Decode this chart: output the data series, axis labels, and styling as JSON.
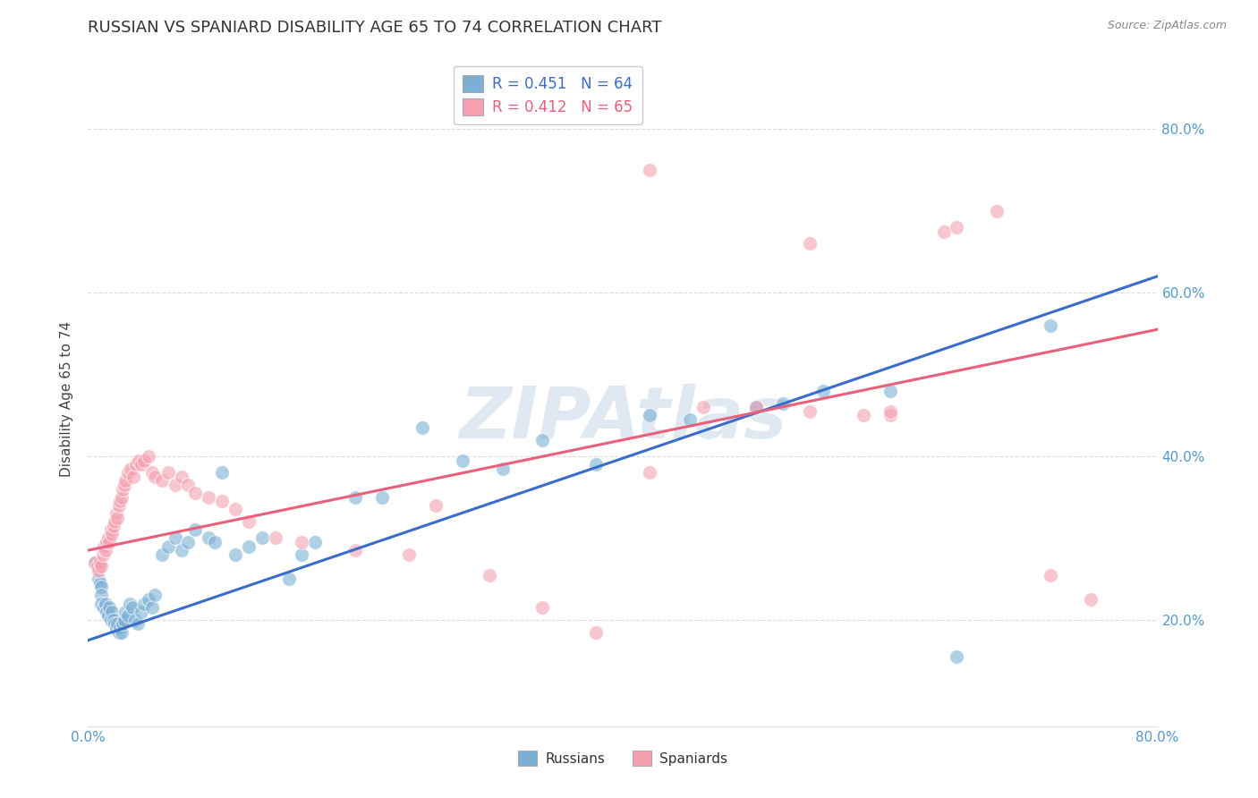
{
  "title": "RUSSIAN VS SPANIARD DISABILITY AGE 65 TO 74 CORRELATION CHART",
  "source": "Source: ZipAtlas.com",
  "ylabel": "Disability Age 65 to 74",
  "xlim": [
    0.0,
    0.8
  ],
  "ylim": [
    0.07,
    0.87
  ],
  "russian_R": 0.451,
  "russian_N": 64,
  "spaniard_R": 0.412,
  "spaniard_N": 65,
  "russian_color": "#7BAFD4",
  "spaniard_color": "#F4A0B0",
  "russian_line_color": "#3A6CC8",
  "spaniard_line_color": "#E8607A",
  "watermark": "ZIPAtlas",
  "russian_line_y0": 0.175,
  "russian_line_y1": 0.62,
  "spaniard_line_y0": 0.285,
  "spaniard_line_y1": 0.555,
  "grid_color": "#DDDDDD",
  "background_color": "#FFFFFF",
  "title_fontsize": 13,
  "axis_label_fontsize": 11,
  "tick_fontsize": 11,
  "legend_fontsize": 12,
  "russian_x": [
    0.005,
    0.007,
    0.008,
    0.009,
    0.01,
    0.01,
    0.01,
    0.012,
    0.013,
    0.014,
    0.015,
    0.016,
    0.017,
    0.018,
    0.019,
    0.02,
    0.021,
    0.022,
    0.023,
    0.024,
    0.025,
    0.026,
    0.027,
    0.028,
    0.03,
    0.031,
    0.033,
    0.035,
    0.037,
    0.04,
    0.042,
    0.045,
    0.048,
    0.05,
    0.055,
    0.06,
    0.065,
    0.07,
    0.075,
    0.08,
    0.09,
    0.095,
    0.1,
    0.11,
    0.12,
    0.13,
    0.15,
    0.16,
    0.17,
    0.2,
    0.22,
    0.25,
    0.28,
    0.31,
    0.34,
    0.38,
    0.42,
    0.45,
    0.5,
    0.52,
    0.55,
    0.6,
    0.65,
    0.72
  ],
  "russian_y": [
    0.27,
    0.265,
    0.25,
    0.245,
    0.24,
    0.23,
    0.22,
    0.215,
    0.22,
    0.21,
    0.205,
    0.215,
    0.2,
    0.21,
    0.2,
    0.195,
    0.19,
    0.195,
    0.185,
    0.19,
    0.185,
    0.195,
    0.2,
    0.21,
    0.205,
    0.22,
    0.215,
    0.2,
    0.195,
    0.21,
    0.22,
    0.225,
    0.215,
    0.23,
    0.28,
    0.29,
    0.3,
    0.285,
    0.295,
    0.31,
    0.3,
    0.295,
    0.38,
    0.28,
    0.29,
    0.3,
    0.25,
    0.28,
    0.295,
    0.35,
    0.35,
    0.435,
    0.395,
    0.385,
    0.42,
    0.39,
    0.45,
    0.445,
    0.46,
    0.465,
    0.48,
    0.48,
    0.155,
    0.56
  ],
  "spaniard_x": [
    0.005,
    0.007,
    0.008,
    0.009,
    0.01,
    0.011,
    0.012,
    0.013,
    0.014,
    0.015,
    0.016,
    0.017,
    0.018,
    0.019,
    0.02,
    0.021,
    0.022,
    0.023,
    0.024,
    0.025,
    0.026,
    0.027,
    0.028,
    0.03,
    0.032,
    0.034,
    0.036,
    0.038,
    0.04,
    0.042,
    0.045,
    0.048,
    0.05,
    0.055,
    0.06,
    0.065,
    0.07,
    0.075,
    0.08,
    0.09,
    0.1,
    0.11,
    0.12,
    0.14,
    0.16,
    0.2,
    0.24,
    0.26,
    0.3,
    0.34,
    0.38,
    0.42,
    0.46,
    0.5,
    0.54,
    0.58,
    0.6,
    0.64,
    0.68,
    0.72,
    0.75,
    0.54,
    0.6,
    0.42,
    0.65
  ],
  "spaniard_y": [
    0.27,
    0.265,
    0.26,
    0.27,
    0.265,
    0.28,
    0.29,
    0.285,
    0.295,
    0.3,
    0.295,
    0.31,
    0.305,
    0.315,
    0.32,
    0.33,
    0.325,
    0.34,
    0.345,
    0.35,
    0.36,
    0.365,
    0.37,
    0.38,
    0.385,
    0.375,
    0.39,
    0.395,
    0.39,
    0.395,
    0.4,
    0.38,
    0.375,
    0.37,
    0.38,
    0.365,
    0.375,
    0.365,
    0.355,
    0.35,
    0.345,
    0.335,
    0.32,
    0.3,
    0.295,
    0.285,
    0.28,
    0.34,
    0.255,
    0.215,
    0.185,
    0.38,
    0.46,
    0.46,
    0.455,
    0.45,
    0.45,
    0.675,
    0.7,
    0.255,
    0.225,
    0.66,
    0.455,
    0.75,
    0.68
  ]
}
